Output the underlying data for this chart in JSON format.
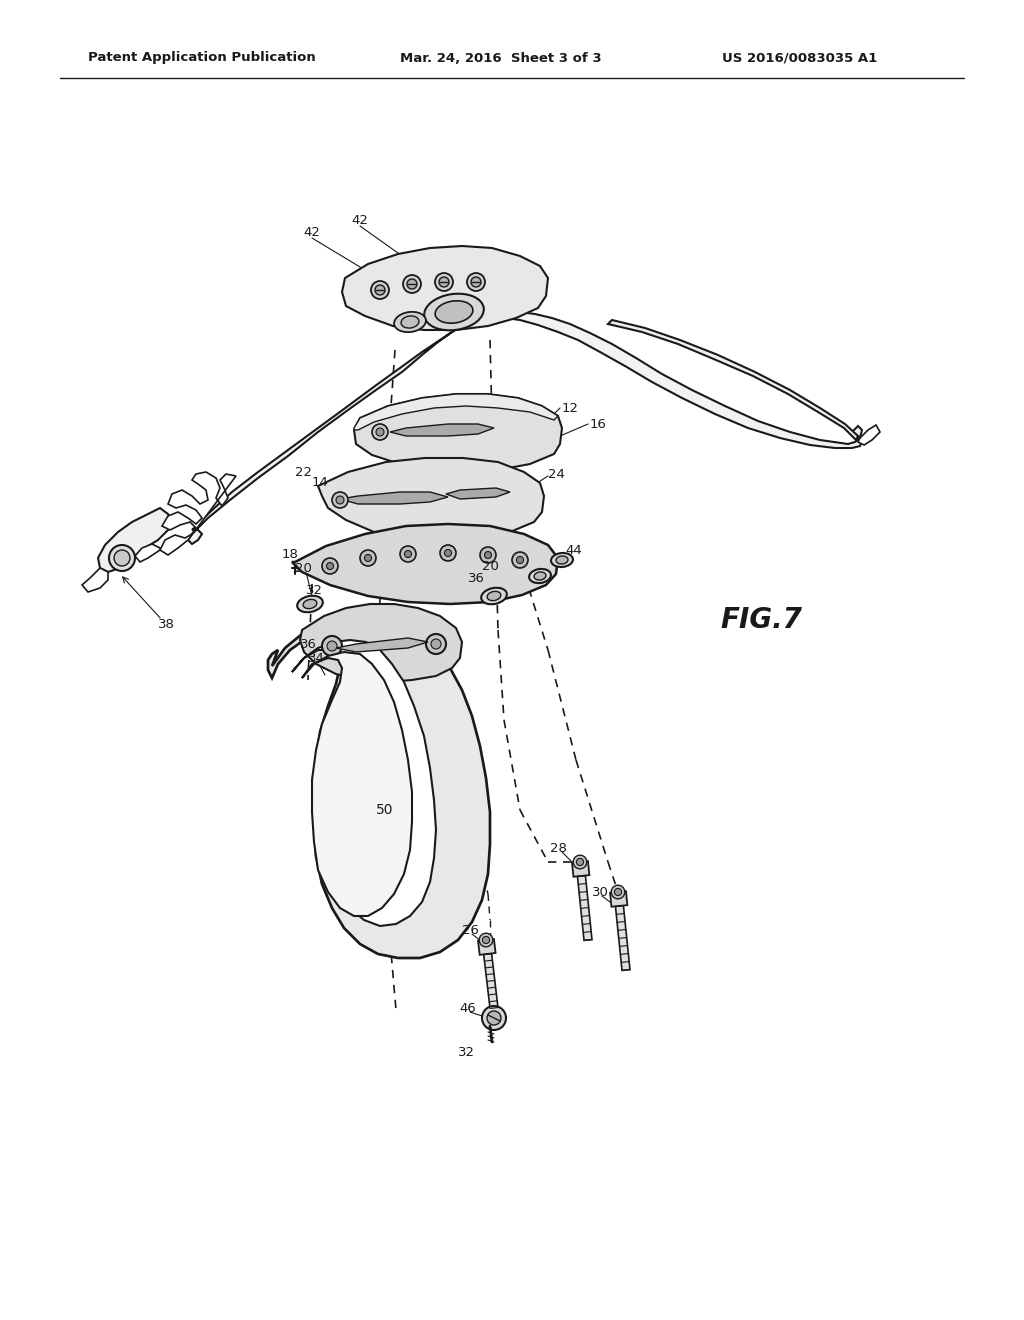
{
  "background_color": "#ffffff",
  "line_color": "#1a1a1a",
  "header_left": "Patent Application Publication",
  "header_mid": "Mar. 24, 2016  Sheet 3 of 3",
  "header_right": "US 2016/0083035 A1",
  "fig_label": "FIG.7"
}
